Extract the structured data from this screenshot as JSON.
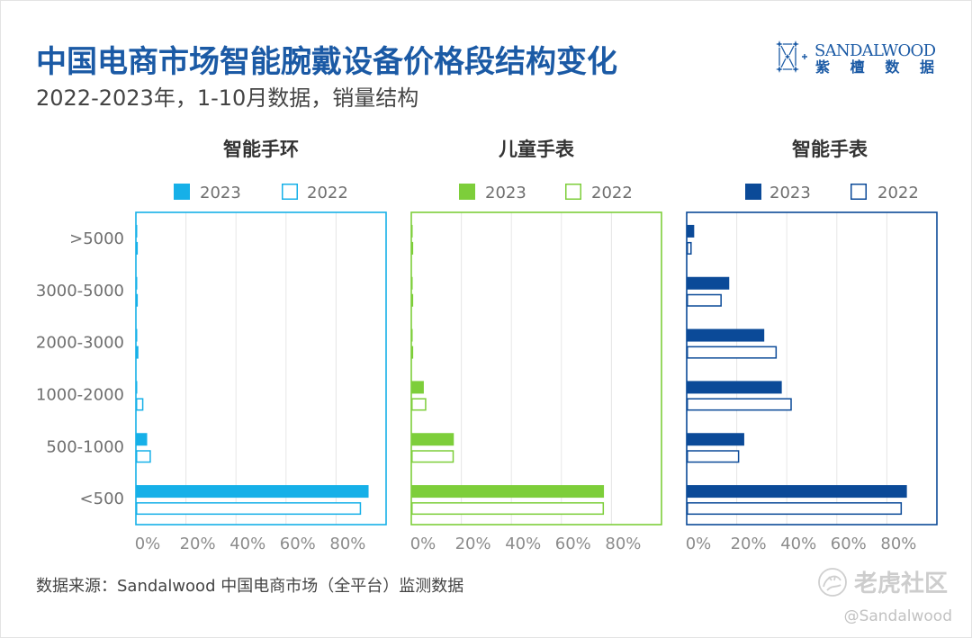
{
  "header": {
    "title": "中国电商市场智能腕戴设备价格段结构变化",
    "subtitle": "2022-2023年，1-10月数据，销量结构"
  },
  "logo": {
    "icon": "sandalwood-network-icon",
    "brand_en": "SANDALWOOD",
    "brand_cn": "紫檀数据"
  },
  "colors": {
    "title": "#1b5aa5"
  },
  "chart_data": [
    {
      "type": "bar",
      "orientation": "horizontal",
      "title": "智能手环",
      "categories": [
        ">5000",
        "3000-5000",
        "2000-3000",
        "1000-2000",
        "500-1000",
        "<500"
      ],
      "series": [
        {
          "name": "2023",
          "style": "filled",
          "values": [
            0.3,
            0.3,
            0.5,
            0.5,
            4.5,
            93
          ]
        },
        {
          "name": "2022",
          "style": "outline",
          "values": [
            0.3,
            0.3,
            1,
            3,
            6,
            90
          ]
        }
      ],
      "xlim": [
        0,
        100
      ],
      "xticks": [
        0,
        20,
        40,
        60,
        80
      ],
      "xtick_labels": [
        "0%",
        "20%",
        "40%",
        "60%",
        "80%"
      ],
      "grid": true,
      "legend": "top",
      "color": "#16b0e8"
    },
    {
      "type": "bar",
      "orientation": "horizontal",
      "title": "儿童手表",
      "categories": [
        ">5000",
        "3000-5000",
        "2000-3000",
        "1000-2000",
        "500-1000",
        "<500"
      ],
      "series": [
        {
          "name": "2023",
          "style": "filled",
          "values": [
            0.5,
            0.5,
            0.5,
            5,
            17,
            77
          ]
        },
        {
          "name": "2022",
          "style": "outline",
          "values": [
            0.5,
            0.5,
            0.5,
            6,
            17,
            77
          ]
        }
      ],
      "xlim": [
        0,
        100
      ],
      "xticks": [
        0,
        20,
        40,
        60,
        80
      ],
      "xtick_labels": [
        "0%",
        "20%",
        "40%",
        "60%",
        "80%"
      ],
      "grid": true,
      "legend": "top",
      "color": "#7dce3a"
    },
    {
      "type": "bar",
      "orientation": "horizontal",
      "title": "智能手表",
      "categories": [
        ">5000",
        "3000-5000",
        "2000-3000",
        "1000-2000",
        "500-1000",
        "<500"
      ],
      "series": [
        {
          "name": "2023",
          "style": "filled",
          "values": [
            3,
            17,
            31,
            38,
            23,
            88
          ]
        },
        {
          "name": "2022",
          "style": "outline",
          "values": [
            2,
            14,
            36,
            42,
            21,
            86
          ]
        }
      ],
      "xlim": [
        0,
        100
      ],
      "xticks": [
        0,
        20,
        40,
        60,
        80
      ],
      "xtick_labels": [
        "0%",
        "20%",
        "40%",
        "60%",
        "80%"
      ],
      "grid": true,
      "legend": "top",
      "color": "#0b4a98"
    }
  ],
  "footer": {
    "source": "数据来源：Sandalwood 中国电商市场（全平台）监测数据"
  },
  "watermark": {
    "icon": "tiger-community-icon",
    "name": "老虎社区",
    "handle": "@Sandalwood"
  }
}
